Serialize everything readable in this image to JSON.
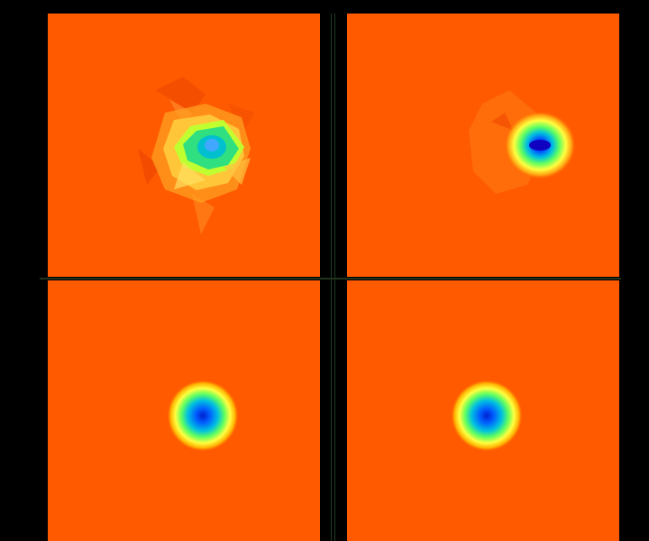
{
  "figure": {
    "background_color": "#000000",
    "colormap": [
      "#0000cc",
      "#0080ff",
      "#00e0a0",
      "#a0ff20",
      "#ffff40",
      "#ffb000",
      "#ff5a00"
    ],
    "panels": [
      {
        "id": "top-left",
        "pattern": "irregular-blob"
      },
      {
        "id": "top-right",
        "pattern": "elongated-blob"
      },
      {
        "id": "bottom-left",
        "pattern": "smooth-ring"
      },
      {
        "id": "bottom-right",
        "pattern": "smooth-ring"
      }
    ]
  }
}
